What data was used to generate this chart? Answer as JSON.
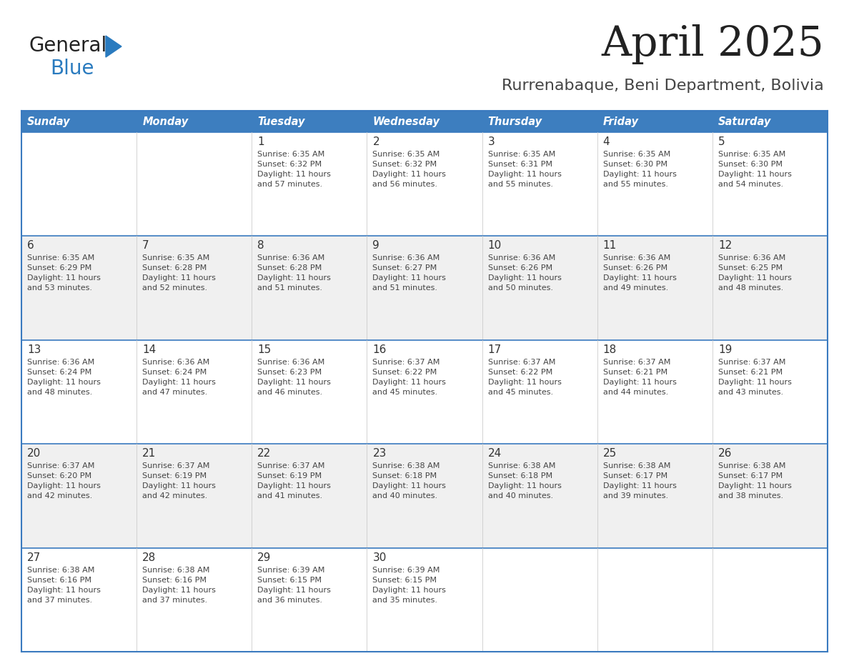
{
  "title": "April 2025",
  "subtitle": "Rurrenabaque, Beni Department, Bolivia",
  "header_bg_color": "#3d7ebf",
  "header_text_color": "#ffffff",
  "days_of_week": [
    "Sunday",
    "Monday",
    "Tuesday",
    "Wednesday",
    "Thursday",
    "Friday",
    "Saturday"
  ],
  "row_bg_even": "#f0f0f0",
  "row_bg_odd": "#ffffff",
  "separator_color": "#3a7abf",
  "day_number_color": "#333333",
  "cell_text_color": "#444444",
  "title_color": "#222222",
  "subtitle_color": "#444444",
  "logo_general_color": "#222222",
  "logo_blue_color": "#2a7bbf",
  "calendar_data": [
    [
      {
        "day": null,
        "info": null
      },
      {
        "day": null,
        "info": null
      },
      {
        "day": 1,
        "info": "Sunrise: 6:35 AM\nSunset: 6:32 PM\nDaylight: 11 hours\nand 57 minutes."
      },
      {
        "day": 2,
        "info": "Sunrise: 6:35 AM\nSunset: 6:32 PM\nDaylight: 11 hours\nand 56 minutes."
      },
      {
        "day": 3,
        "info": "Sunrise: 6:35 AM\nSunset: 6:31 PM\nDaylight: 11 hours\nand 55 minutes."
      },
      {
        "day": 4,
        "info": "Sunrise: 6:35 AM\nSunset: 6:30 PM\nDaylight: 11 hours\nand 55 minutes."
      },
      {
        "day": 5,
        "info": "Sunrise: 6:35 AM\nSunset: 6:30 PM\nDaylight: 11 hours\nand 54 minutes."
      }
    ],
    [
      {
        "day": 6,
        "info": "Sunrise: 6:35 AM\nSunset: 6:29 PM\nDaylight: 11 hours\nand 53 minutes."
      },
      {
        "day": 7,
        "info": "Sunrise: 6:35 AM\nSunset: 6:28 PM\nDaylight: 11 hours\nand 52 minutes."
      },
      {
        "day": 8,
        "info": "Sunrise: 6:36 AM\nSunset: 6:28 PM\nDaylight: 11 hours\nand 51 minutes."
      },
      {
        "day": 9,
        "info": "Sunrise: 6:36 AM\nSunset: 6:27 PM\nDaylight: 11 hours\nand 51 minutes."
      },
      {
        "day": 10,
        "info": "Sunrise: 6:36 AM\nSunset: 6:26 PM\nDaylight: 11 hours\nand 50 minutes."
      },
      {
        "day": 11,
        "info": "Sunrise: 6:36 AM\nSunset: 6:26 PM\nDaylight: 11 hours\nand 49 minutes."
      },
      {
        "day": 12,
        "info": "Sunrise: 6:36 AM\nSunset: 6:25 PM\nDaylight: 11 hours\nand 48 minutes."
      }
    ],
    [
      {
        "day": 13,
        "info": "Sunrise: 6:36 AM\nSunset: 6:24 PM\nDaylight: 11 hours\nand 48 minutes."
      },
      {
        "day": 14,
        "info": "Sunrise: 6:36 AM\nSunset: 6:24 PM\nDaylight: 11 hours\nand 47 minutes."
      },
      {
        "day": 15,
        "info": "Sunrise: 6:36 AM\nSunset: 6:23 PM\nDaylight: 11 hours\nand 46 minutes."
      },
      {
        "day": 16,
        "info": "Sunrise: 6:37 AM\nSunset: 6:22 PM\nDaylight: 11 hours\nand 45 minutes."
      },
      {
        "day": 17,
        "info": "Sunrise: 6:37 AM\nSunset: 6:22 PM\nDaylight: 11 hours\nand 45 minutes."
      },
      {
        "day": 18,
        "info": "Sunrise: 6:37 AM\nSunset: 6:21 PM\nDaylight: 11 hours\nand 44 minutes."
      },
      {
        "day": 19,
        "info": "Sunrise: 6:37 AM\nSunset: 6:21 PM\nDaylight: 11 hours\nand 43 minutes."
      }
    ],
    [
      {
        "day": 20,
        "info": "Sunrise: 6:37 AM\nSunset: 6:20 PM\nDaylight: 11 hours\nand 42 minutes."
      },
      {
        "day": 21,
        "info": "Sunrise: 6:37 AM\nSunset: 6:19 PM\nDaylight: 11 hours\nand 42 minutes."
      },
      {
        "day": 22,
        "info": "Sunrise: 6:37 AM\nSunset: 6:19 PM\nDaylight: 11 hours\nand 41 minutes."
      },
      {
        "day": 23,
        "info": "Sunrise: 6:38 AM\nSunset: 6:18 PM\nDaylight: 11 hours\nand 40 minutes."
      },
      {
        "day": 24,
        "info": "Sunrise: 6:38 AM\nSunset: 6:18 PM\nDaylight: 11 hours\nand 40 minutes."
      },
      {
        "day": 25,
        "info": "Sunrise: 6:38 AM\nSunset: 6:17 PM\nDaylight: 11 hours\nand 39 minutes."
      },
      {
        "day": 26,
        "info": "Sunrise: 6:38 AM\nSunset: 6:17 PM\nDaylight: 11 hours\nand 38 minutes."
      }
    ],
    [
      {
        "day": 27,
        "info": "Sunrise: 6:38 AM\nSunset: 6:16 PM\nDaylight: 11 hours\nand 37 minutes."
      },
      {
        "day": 28,
        "info": "Sunrise: 6:38 AM\nSunset: 6:16 PM\nDaylight: 11 hours\nand 37 minutes."
      },
      {
        "day": 29,
        "info": "Sunrise: 6:39 AM\nSunset: 6:15 PM\nDaylight: 11 hours\nand 36 minutes."
      },
      {
        "day": 30,
        "info": "Sunrise: 6:39 AM\nSunset: 6:15 PM\nDaylight: 11 hours\nand 35 minutes."
      },
      {
        "day": null,
        "info": null
      },
      {
        "day": null,
        "info": null
      },
      {
        "day": null,
        "info": null
      }
    ]
  ]
}
